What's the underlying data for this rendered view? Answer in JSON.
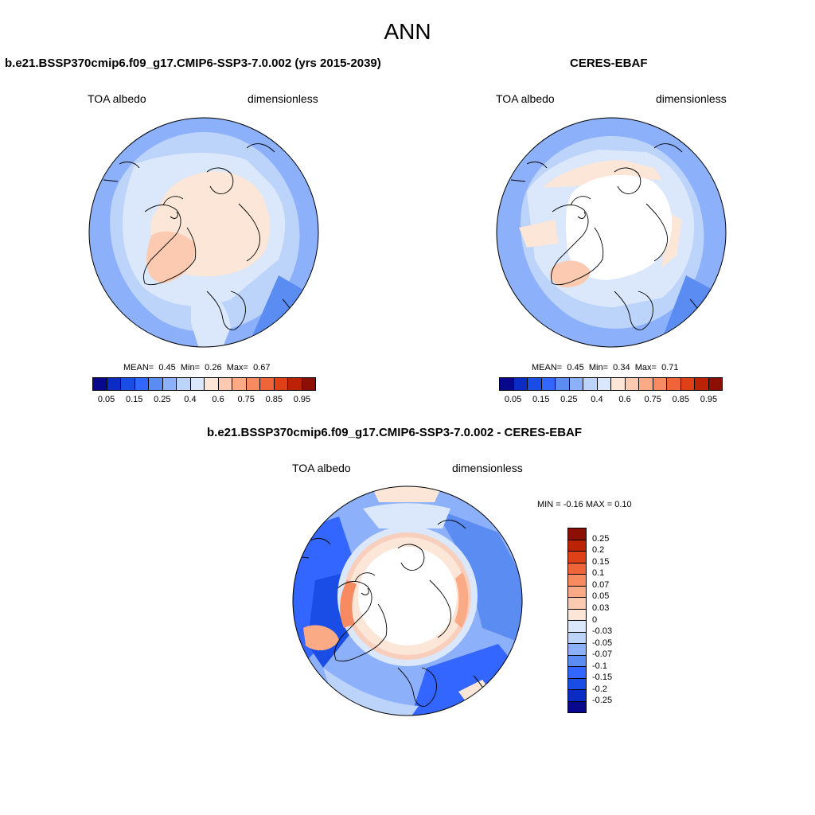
{
  "figure": {
    "title": "ANN"
  },
  "panels": {
    "model": {
      "title": "b.e21.BSSP370cmip6.f09_g17.CMIP6-SSP3-7.0.002 (yrs 2015-2039)",
      "variable": "TOA albedo",
      "units": "dimensionless",
      "mean_label": "MEAN=",
      "mean": "0.45",
      "min_label": "Min=",
      "min": "0.26",
      "max_label": "Max=",
      "max": "0.67"
    },
    "obs": {
      "title": "CERES-EBAF",
      "variable": "TOA albedo",
      "units": "dimensionless",
      "mean_label": "MEAN=",
      "mean": "0.45",
      "min_label": "Min=",
      "min": "0.34",
      "max_label": "Max=",
      "max": "0.71"
    },
    "diff": {
      "title": "b.e21.BSSP370cmip6.f09_g17.CMIP6-SSP3-7.0.002 - CERES-EBAF",
      "variable": "TOA albedo",
      "units": "dimensionless",
      "minmax": "MIN =  -0.16 MAX =  0.10"
    }
  },
  "colorbars": {
    "absolute": {
      "colors": [
        "#08088c",
        "#0a2bc4",
        "#1a4de6",
        "#3366ff",
        "#5b8cf2",
        "#8cb0fa",
        "#bcd3fa",
        "#dbe8fb",
        "#fbe6d8",
        "#fccab0",
        "#fbaa86",
        "#f78a60",
        "#f0643a",
        "#e04018",
        "#bc2206",
        "#8c0f04"
      ],
      "ticks": [
        "0.05",
        "0.15",
        "0.25",
        "0.4",
        "0.6",
        "0.75",
        "0.85",
        "0.95"
      ]
    },
    "difference": {
      "colors": [
        "#8c0f04",
        "#bc2206",
        "#e04018",
        "#f0643a",
        "#f78a60",
        "#fbaa86",
        "#fccab0",
        "#fbe6d8",
        "#dbe8fb",
        "#bcd3fa",
        "#8cb0fa",
        "#5b8cf2",
        "#3366ff",
        "#1a4de6",
        "#0a2bc4",
        "#08088c"
      ],
      "ticks": [
        "0.25",
        "0.2",
        "0.15",
        "0.1",
        "0.07",
        "0.05",
        "0.03",
        "0",
        "-0.03",
        "-0.05",
        "-0.07",
        "-0.1",
        "-0.15",
        "-0.2",
        "-0.25"
      ]
    }
  }
}
